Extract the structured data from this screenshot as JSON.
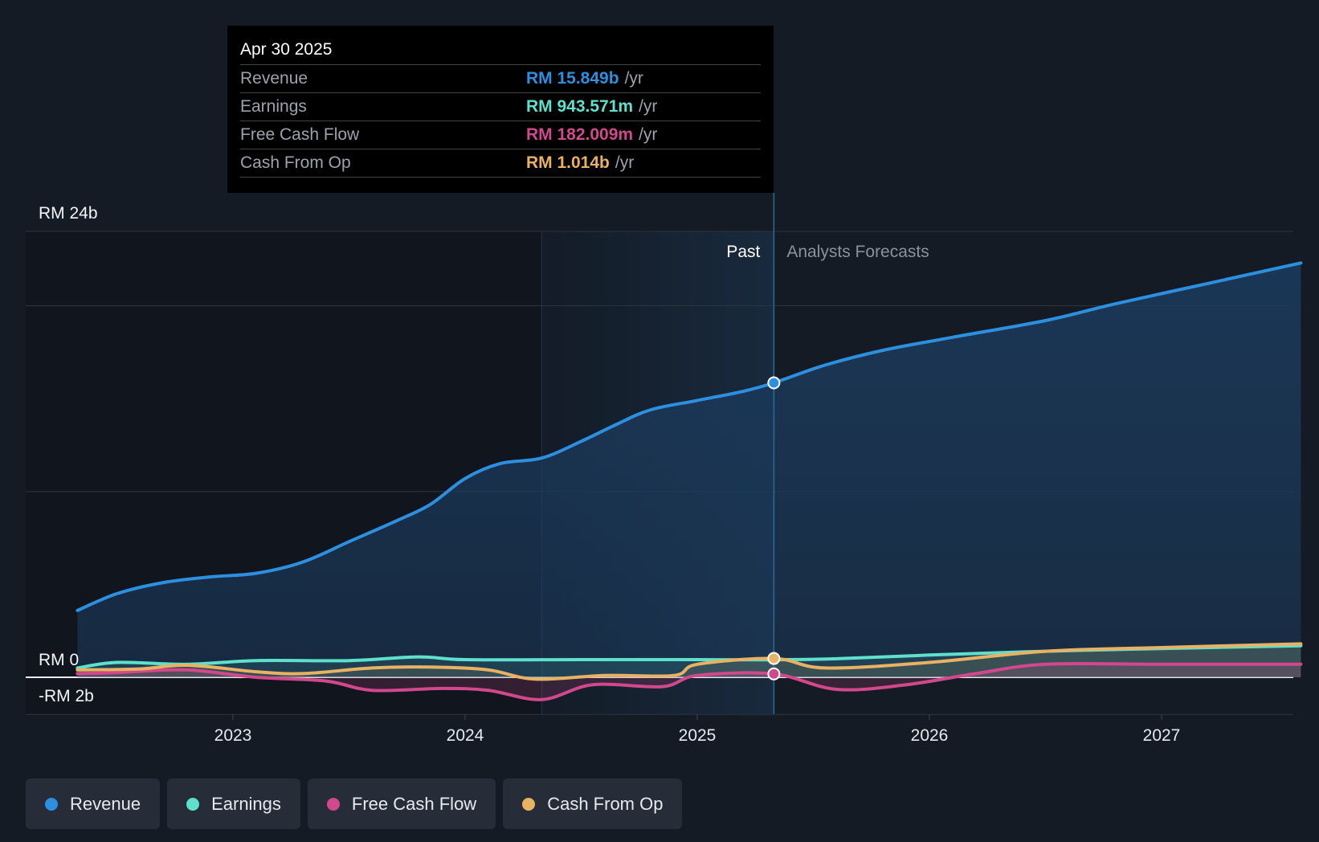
{
  "chart_data": {
    "type": "area",
    "title": "",
    "ylim": [
      -2,
      24
    ],
    "y_tick_labels": [
      "RM 24b",
      "RM 0",
      "-RM 2b"
    ],
    "y_tick_values": [
      24,
      0,
      -2
    ],
    "gridlines": [
      24,
      20,
      10,
      0,
      -2
    ],
    "x_tick_labels": [
      "2023",
      "2024",
      "2025",
      "2026",
      "2027"
    ],
    "x_tick_values": [
      2023,
      2024,
      2025,
      2026,
      2027
    ],
    "xlim": [
      2022.3,
      2027.6
    ],
    "past_label": "Past",
    "forecast_label": "Analysts Forecasts",
    "past_end": 2025.33,
    "highlight_start": 2024.33,
    "series": [
      {
        "name": "Revenue",
        "color": "#2d8fe0",
        "points": [
          [
            2022.33,
            3.6
          ],
          [
            2022.5,
            4.5
          ],
          [
            2022.7,
            5.1
          ],
          [
            2022.9,
            5.4
          ],
          [
            2023.1,
            5.6
          ],
          [
            2023.3,
            6.2
          ],
          [
            2023.5,
            7.3
          ],
          [
            2023.7,
            8.4
          ],
          [
            2023.85,
            9.3
          ],
          [
            2024.0,
            10.7
          ],
          [
            2024.15,
            11.5
          ],
          [
            2024.33,
            11.8
          ],
          [
            2024.5,
            12.7
          ],
          [
            2024.65,
            13.6
          ],
          [
            2024.8,
            14.4
          ],
          [
            2025.0,
            14.9
          ],
          [
            2025.2,
            15.4
          ],
          [
            2025.33,
            15.849
          ],
          [
            2025.55,
            16.8
          ],
          [
            2025.8,
            17.6
          ],
          [
            2026.1,
            18.3
          ],
          [
            2026.5,
            19.2
          ],
          [
            2026.8,
            20.1
          ],
          [
            2027.2,
            21.2
          ],
          [
            2027.6,
            22.3
          ]
        ]
      },
      {
        "name": "Earnings",
        "color": "#5ee0cd",
        "points": [
          [
            2022.33,
            0.5
          ],
          [
            2022.5,
            0.8
          ],
          [
            2022.8,
            0.7
          ],
          [
            2023.1,
            0.9
          ],
          [
            2023.5,
            0.9
          ],
          [
            2023.8,
            1.1
          ],
          [
            2024.0,
            0.95
          ],
          [
            2024.5,
            0.95
          ],
          [
            2025.0,
            0.95
          ],
          [
            2025.33,
            0.944
          ],
          [
            2025.6,
            1.0
          ],
          [
            2026.0,
            1.2
          ],
          [
            2026.5,
            1.4
          ],
          [
            2027.0,
            1.55
          ],
          [
            2027.6,
            1.7
          ]
        ]
      },
      {
        "name": "Free Cash Flow",
        "color": "#d2488c",
        "points": [
          [
            2022.33,
            0.2
          ],
          [
            2022.5,
            0.25
          ],
          [
            2022.8,
            0.4
          ],
          [
            2023.1,
            0.0
          ],
          [
            2023.4,
            -0.2
          ],
          [
            2023.6,
            -0.7
          ],
          [
            2023.9,
            -0.6
          ],
          [
            2024.1,
            -0.7
          ],
          [
            2024.33,
            -1.2
          ],
          [
            2024.55,
            -0.4
          ],
          [
            2024.85,
            -0.5
          ],
          [
            2025.0,
            0.1
          ],
          [
            2025.33,
            0.182
          ],
          [
            2025.6,
            -0.65
          ],
          [
            2025.9,
            -0.4
          ],
          [
            2026.2,
            0.2
          ],
          [
            2026.5,
            0.7
          ],
          [
            2027.0,
            0.7
          ],
          [
            2027.6,
            0.7
          ]
        ]
      },
      {
        "name": "Cash From Op",
        "color": "#e9b262",
        "points": [
          [
            2022.33,
            0.4
          ],
          [
            2022.6,
            0.45
          ],
          [
            2022.8,
            0.65
          ],
          [
            2023.1,
            0.3
          ],
          [
            2023.3,
            0.2
          ],
          [
            2023.6,
            0.5
          ],
          [
            2023.85,
            0.55
          ],
          [
            2024.1,
            0.4
          ],
          [
            2024.3,
            -0.1
          ],
          [
            2024.6,
            0.1
          ],
          [
            2024.9,
            0.1
          ],
          [
            2025.0,
            0.7
          ],
          [
            2025.33,
            1.014
          ],
          [
            2025.55,
            0.5
          ],
          [
            2026.0,
            0.8
          ],
          [
            2026.5,
            1.4
          ],
          [
            2027.0,
            1.6
          ],
          [
            2027.6,
            1.8
          ]
        ]
      }
    ]
  },
  "tooltip": {
    "date": "Apr 30 2025",
    "rows": [
      {
        "label": "Revenue",
        "value": "RM 15.849b",
        "unit": "/yr",
        "color": "#2d8fe0"
      },
      {
        "label": "Earnings",
        "value": "RM 943.571m",
        "unit": "/yr",
        "color": "#5ee0cd"
      },
      {
        "label": "Free Cash Flow",
        "value": "RM 182.009m",
        "unit": "/yr",
        "color": "#d2488c"
      },
      {
        "label": "Cash From Op",
        "value": "RM 1.014b",
        "unit": "/yr",
        "color": "#e9b262"
      }
    ]
  },
  "legend": {
    "items": [
      {
        "label": "Revenue",
        "color": "#2d8fe0"
      },
      {
        "label": "Earnings",
        "color": "#5ee0cd"
      },
      {
        "label": "Free Cash Flow",
        "color": "#d2488c"
      },
      {
        "label": "Cash From Op",
        "color": "#e9b262"
      }
    ]
  }
}
